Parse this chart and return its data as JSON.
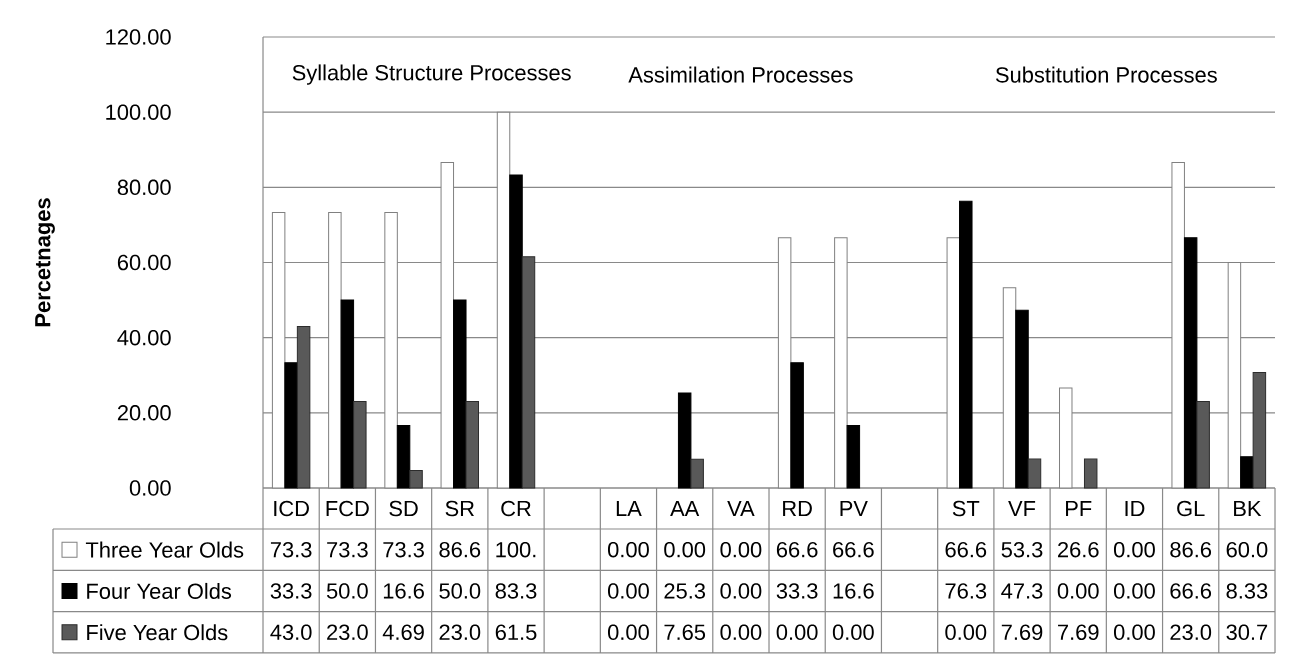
{
  "chart_data": {
    "type": "bar",
    "ylabel": "Percetnages",
    "categories": [
      "ICD",
      "FCD",
      "SD",
      "SR",
      "CR",
      null,
      "LA",
      "AA",
      "VA",
      "RD",
      "PV",
      null,
      "ST",
      "VF",
      "PF",
      "ID",
      "GL",
      "BK"
    ],
    "series": [
      {
        "name": "Three Year Olds",
        "color": "#ffffff",
        "values": [
          73.3,
          73.3,
          73.3,
          86.6,
          100,
          null,
          0,
          0,
          0,
          66.6,
          66.6,
          null,
          66.6,
          53.3,
          26.6,
          0,
          86.6,
          60
        ],
        "value_labels": [
          "73.3",
          "73.3",
          "73.3",
          "86.6",
          "100.",
          null,
          "0.00",
          "0.00",
          "0.00",
          "66.6",
          "66.6",
          null,
          "66.6",
          "53.3",
          "26.6",
          "0.00",
          "86.6",
          "60.0"
        ]
      },
      {
        "name": "Four Year Olds",
        "color": "#000000",
        "values": [
          33.3,
          50,
          16.6,
          50,
          83.3,
          null,
          0,
          25.3,
          0,
          33.3,
          16.6,
          null,
          76.3,
          47.3,
          0,
          0,
          66.6,
          8.33
        ],
        "value_labels": [
          "33.3",
          "50.0",
          "16.6",
          "50.0",
          "83.3",
          null,
          "0.00",
          "25.3",
          "0.00",
          "33.3",
          "16.6",
          null,
          "76.3",
          "47.3",
          "0.00",
          "0.00",
          "66.6",
          "8.33"
        ]
      },
      {
        "name": "Five Year Olds",
        "color": "#595959",
        "values": [
          43,
          23,
          4.69,
          23,
          61.5,
          null,
          0,
          7.65,
          0,
          0,
          0,
          null,
          0,
          7.69,
          7.69,
          0,
          23,
          30.7
        ],
        "value_labels": [
          "43.0",
          "23.0",
          "4.69",
          "23.0",
          "61.5",
          null,
          "0.00",
          "7.65",
          "0.00",
          "0.00",
          "0.00",
          null,
          "0.00",
          "7.69",
          "7.69",
          "0.00",
          "23.0",
          "30.7"
        ]
      }
    ],
    "ylim": [
      0,
      120
    ],
    "yticks": [
      {
        "value": 0,
        "label": "0.00"
      },
      {
        "value": 20,
        "label": "20.00"
      },
      {
        "value": 40,
        "label": "40.00"
      },
      {
        "value": 60,
        "label": "60.00"
      },
      {
        "value": 80,
        "label": "80.00"
      },
      {
        "value": 100,
        "label": "100.00"
      },
      {
        "value": 120,
        "label": "120.00"
      }
    ],
    "grid": "y",
    "legend": "bottom",
    "annotations": [
      "Syllable Structure Processes",
      "Assimilation Processes",
      "Substitution Processes"
    ]
  }
}
